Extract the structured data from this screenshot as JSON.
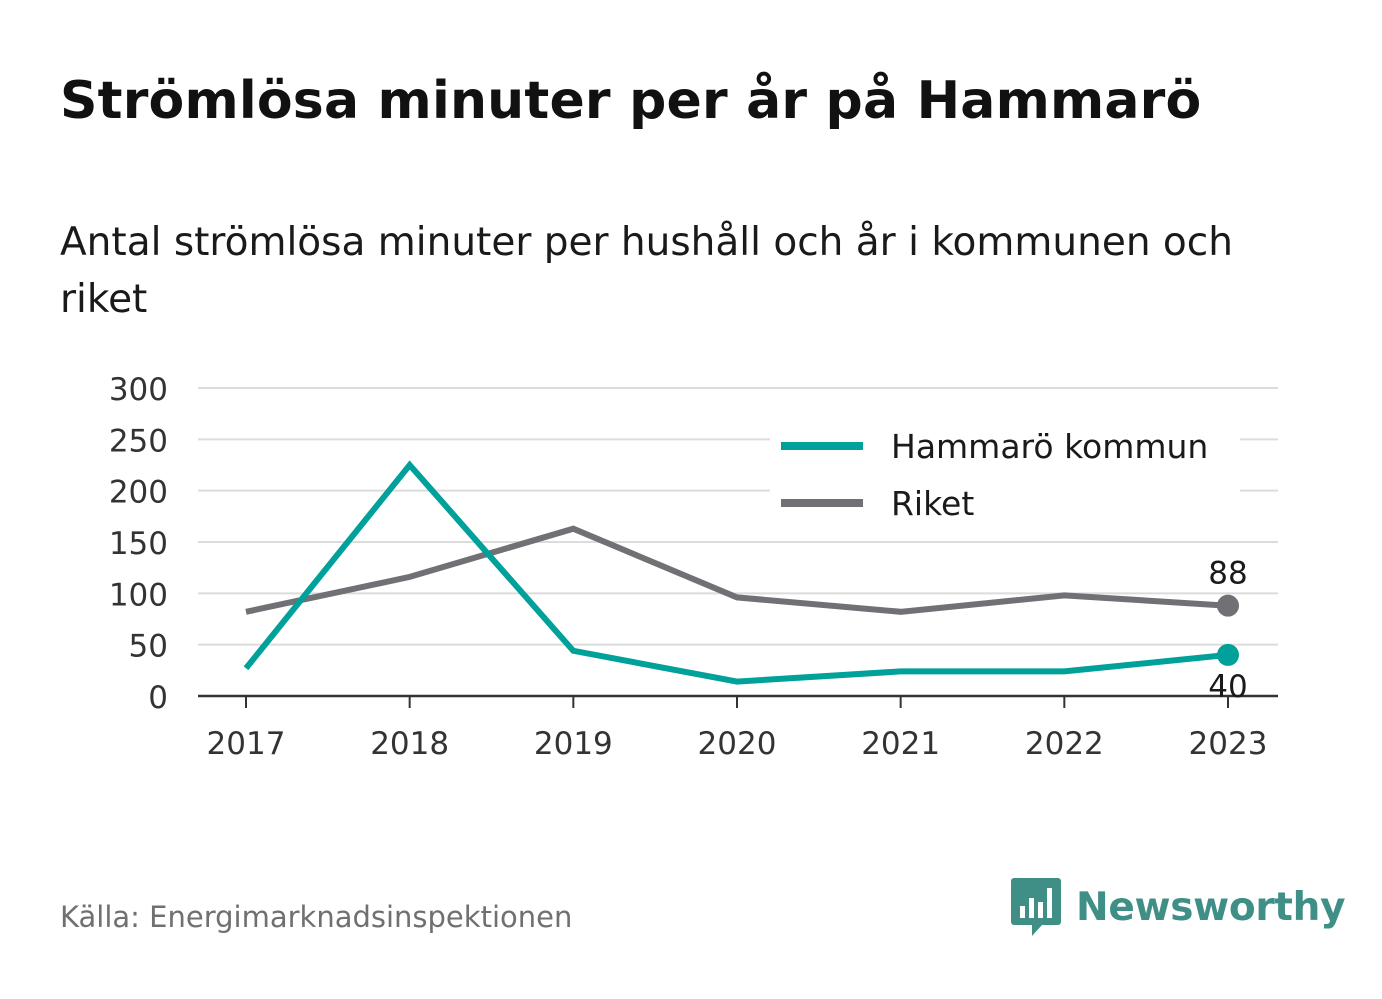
{
  "title": "Strömlösa minuter per år på Hammarö",
  "subtitle": "Antal strömlösa minuter per hushåll och år i kommunen och riket",
  "source": "Källa: Energimarknadsinspektionen",
  "brand": {
    "name": "Newsworthy",
    "icon": "bar-chart-speech-bubble-icon",
    "color": "#3f8f87"
  },
  "chart_data": {
    "type": "line",
    "x": [
      "2017",
      "2018",
      "2019",
      "2020",
      "2021",
      "2022",
      "2023"
    ],
    "series": [
      {
        "name": "Hammarö kommun",
        "color": "#00a19a",
        "values": [
          27,
          225,
          44,
          14,
          24,
          24,
          40
        ]
      },
      {
        "name": "Riket",
        "color": "#707075",
        "values": [
          82,
          116,
          163,
          96,
          82,
          98,
          88
        ]
      }
    ],
    "end_labels": [
      {
        "series": "Riket",
        "text": "88"
      },
      {
        "series": "Hammarö kommun",
        "text": "40"
      }
    ],
    "yticks": [
      "0",
      "50",
      "100",
      "150",
      "200",
      "250",
      "300"
    ],
    "ylim": [
      0,
      300
    ],
    "xlabel": "",
    "ylabel": "",
    "grid": true,
    "legend_position": "top-right"
  }
}
